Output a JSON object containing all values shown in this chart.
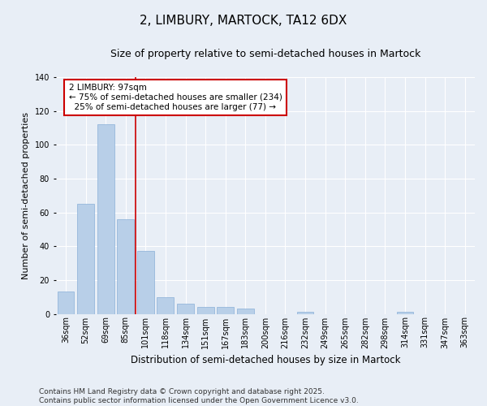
{
  "title": "2, LIMBURY, MARTOCK, TA12 6DX",
  "subtitle": "Size of property relative to semi-detached houses in Martock",
  "xlabel": "Distribution of semi-detached houses by size in Martock",
  "ylabel": "Number of semi-detached properties",
  "categories": [
    "36sqm",
    "52sqm",
    "69sqm",
    "85sqm",
    "101sqm",
    "118sqm",
    "134sqm",
    "151sqm",
    "167sqm",
    "183sqm",
    "200sqm",
    "216sqm",
    "232sqm",
    "249sqm",
    "265sqm",
    "282sqm",
    "298sqm",
    "314sqm",
    "331sqm",
    "347sqm",
    "363sqm"
  ],
  "values": [
    13,
    65,
    112,
    56,
    37,
    10,
    6,
    4,
    4,
    3,
    0,
    0,
    1,
    0,
    0,
    0,
    0,
    1,
    0,
    0,
    0
  ],
  "bar_color": "#b8cfe8",
  "bar_edge_color": "#8ab0d8",
  "vline_x_index": 3.5,
  "vline_color": "#cc0000",
  "ann_line1": "2 LIMBURY: 97sqm",
  "ann_line2": "← 75% of semi-detached houses are smaller (234)",
  "ann_line3": "  25% of semi-detached houses are larger (77) →",
  "annotation_box_facecolor": "#ffffff",
  "annotation_box_edgecolor": "#cc0000",
  "ylim": [
    0,
    140
  ],
  "yticks": [
    0,
    20,
    40,
    60,
    80,
    100,
    120,
    140
  ],
  "bg_color": "#e8eef6",
  "plot_bg_color": "#e8eef6",
  "footer_line1": "Contains HM Land Registry data © Crown copyright and database right 2025.",
  "footer_line2": "Contains public sector information licensed under the Open Government Licence v3.0.",
  "title_fontsize": 11,
  "subtitle_fontsize": 9,
  "annotation_fontsize": 7.5,
  "tick_fontsize": 7,
  "ylabel_fontsize": 8,
  "xlabel_fontsize": 8.5,
  "footer_fontsize": 6.5
}
